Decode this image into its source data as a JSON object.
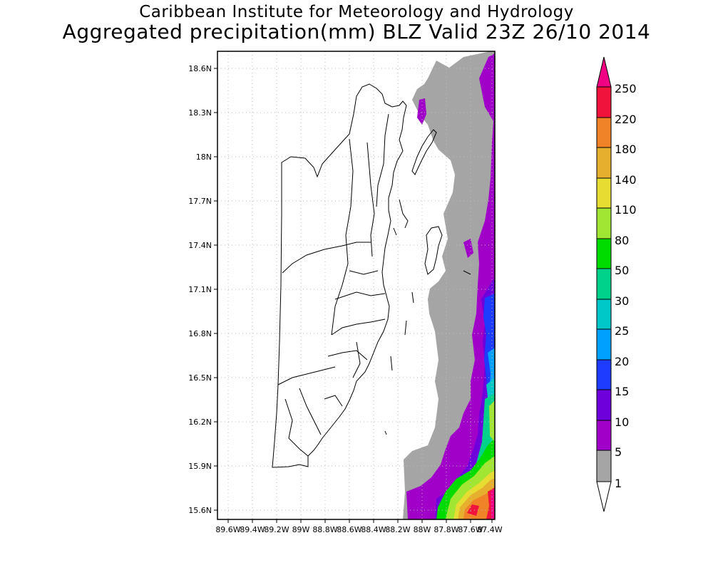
{
  "header": {
    "title": "Caribbean Institute for Meteorology and Hydrology",
    "subtitle": "Aggregated precipitation(mm) BLZ Valid 23Z 26/10 2014"
  },
  "map": {
    "lat_ticks": [
      "18.6N",
      "18.3N",
      "18N",
      "17.7N",
      "17.4N",
      "17.1N",
      "16.8N",
      "16.5N",
      "16.2N",
      "15.9N",
      "15.6N"
    ],
    "lon_ticks": [
      "89.6W",
      "89.4W",
      "89.2W",
      "89W",
      "88.8W",
      "88.6W",
      "88.4W",
      "88.2W",
      "88W",
      "87.8W",
      "87.6W",
      "87.4W"
    ],
    "grid": "dotted"
  },
  "colorbar": {
    "labels": [
      "250",
      "220",
      "180",
      "140",
      "110",
      "80",
      "50",
      "30",
      "25",
      "20",
      "15",
      "10",
      "5",
      "1"
    ],
    "colors": {
      "250": "#f0143c",
      "220": "#f08228",
      "180": "#e6af2d",
      "140": "#e6dc32",
      "110": "#a0e632",
      "80": "#00dc00",
      "50": "#00d28c",
      "30": "#00c8c8",
      "25": "#00a0ff",
      "20": "#1e3cff",
      "15": "#6e00dc",
      "10": "#a000c8",
      "5": "#a5a5a5",
      "over": "#f00082",
      "under": "#ffffff"
    }
  }
}
